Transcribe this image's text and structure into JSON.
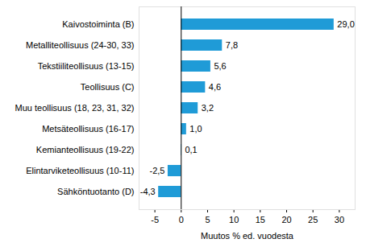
{
  "chart_data": {
    "type": "bar",
    "orientation": "horizontal",
    "categories": [
      "Kaivostoiminta (B)",
      "Metalliteollisuus (24-30, 33)",
      "Tekstiiliteollisuus (13-15)",
      "Teollisuus (C)",
      "Muu teollisuus (18, 23, 31, 32)",
      "Metsäteollisuus (16-17)",
      "Kemianteollisuus (19-22)",
      "Elintarviketeollisuus (10-11)",
      "Sähköntuotanto (D)"
    ],
    "values": [
      29.0,
      7.8,
      5.6,
      4.6,
      3.2,
      1.0,
      0.1,
      -2.5,
      -4.3
    ],
    "value_labels": [
      "29,0",
      "7,8",
      "5,6",
      "4,6",
      "3,2",
      "1,0",
      "0,1",
      "-2,5",
      "-4,3"
    ],
    "data_labels": true,
    "color": "#1f9bd7",
    "x_label": "Muutos % ed. vuodesta",
    "xlim": [
      -8,
      33
    ],
    "xticks": [
      -5,
      0,
      5,
      10,
      15,
      20,
      25,
      30
    ],
    "grid": false
  }
}
